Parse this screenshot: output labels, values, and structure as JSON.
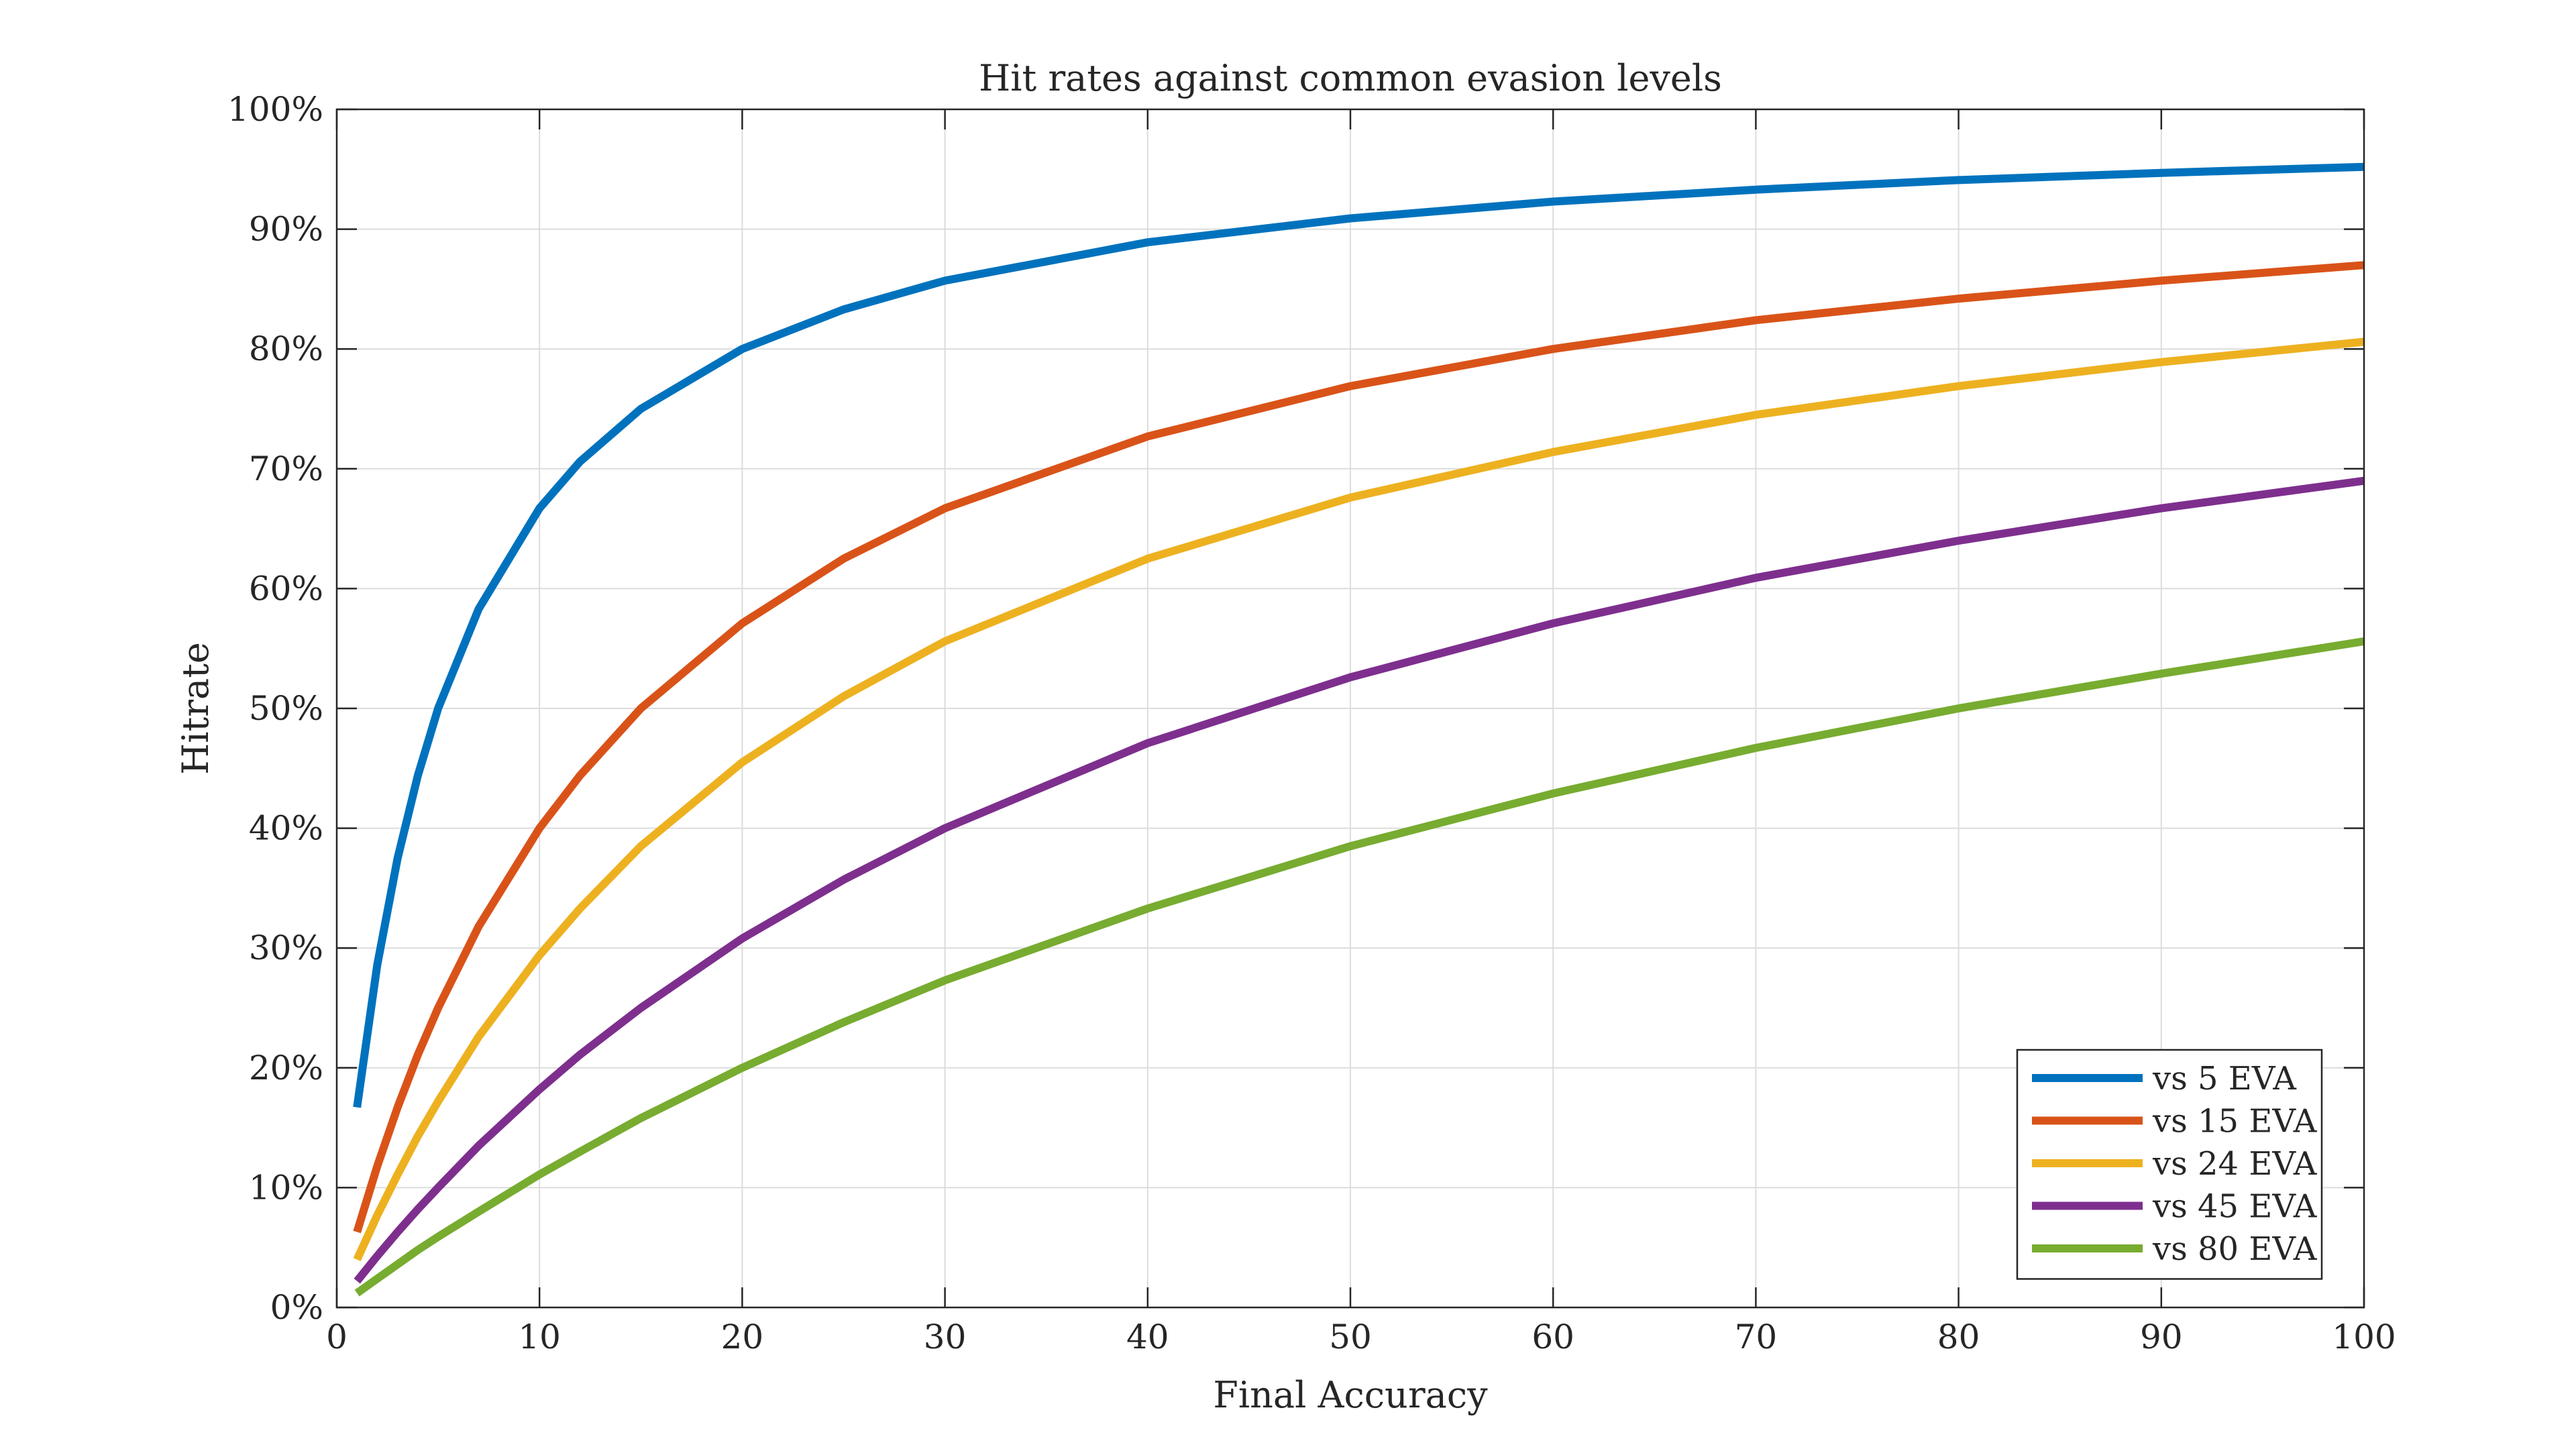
{
  "chart_data": {
    "type": "line",
    "title": "Hit rates against common evasion levels",
    "xlabel": "Final Accuracy",
    "ylabel": "Hitrate",
    "xlim": [
      0,
      100
    ],
    "ylim": [
      0,
      100
    ],
    "x_ticks": [
      0,
      10,
      20,
      30,
      40,
      50,
      60,
      70,
      80,
      90,
      100
    ],
    "y_ticks": [
      0,
      10,
      20,
      30,
      40,
      50,
      60,
      70,
      80,
      90,
      100
    ],
    "y_tick_suffix": "%",
    "grid": true,
    "legend_position": "bottom-right",
    "x": [
      1,
      2,
      3,
      4,
      5,
      7,
      10,
      12,
      15,
      20,
      25,
      30,
      40,
      50,
      60,
      70,
      80,
      90,
      100
    ],
    "series": [
      {
        "name": "vs 5 EVA",
        "color": "#0072BD",
        "values": [
          16.7,
          28.6,
          37.5,
          44.4,
          50.0,
          58.3,
          66.7,
          70.6,
          75.0,
          80.0,
          83.3,
          85.7,
          88.9,
          90.9,
          92.3,
          93.3,
          94.1,
          94.7,
          95.2
        ]
      },
      {
        "name": "vs 15 EVA",
        "color": "#D95319",
        "values": [
          6.3,
          11.8,
          16.7,
          21.1,
          25.0,
          31.8,
          40.0,
          44.4,
          50.0,
          57.1,
          62.5,
          66.7,
          72.7,
          76.9,
          80.0,
          82.4,
          84.2,
          85.7,
          87.0
        ]
      },
      {
        "name": "vs 24 EVA",
        "color": "#EDB120",
        "values": [
          4.0,
          7.7,
          11.1,
          14.3,
          17.2,
          22.6,
          29.4,
          33.3,
          38.5,
          45.5,
          51.0,
          55.6,
          62.5,
          67.6,
          71.4,
          74.5,
          76.9,
          78.9,
          80.6
        ]
      },
      {
        "name": "vs 45 EVA",
        "color": "#7E2F8E",
        "values": [
          2.2,
          4.3,
          6.3,
          8.2,
          10.0,
          13.5,
          18.2,
          21.1,
          25.0,
          30.8,
          35.7,
          40.0,
          47.1,
          52.6,
          57.1,
          60.9,
          64.0,
          66.7,
          69.0
        ]
      },
      {
        "name": "vs 80 EVA",
        "color": "#77AC30",
        "values": [
          1.2,
          2.4,
          3.6,
          4.8,
          5.9,
          8.0,
          11.1,
          13.0,
          15.8,
          20.0,
          23.8,
          27.3,
          33.3,
          38.5,
          42.9,
          46.7,
          50.0,
          52.9,
          55.6
        ]
      }
    ]
  }
}
